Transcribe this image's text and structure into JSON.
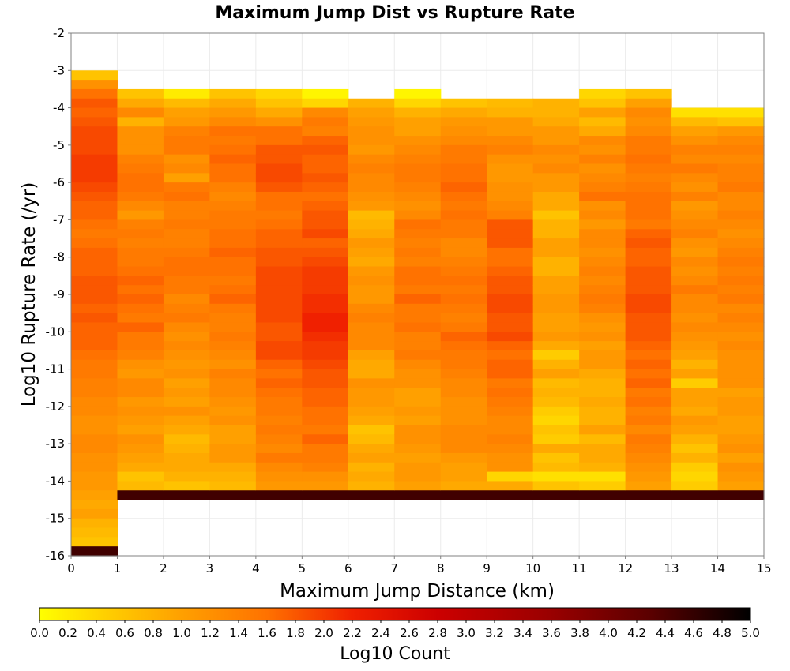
{
  "chart_data": {
    "type": "heatmap",
    "title": "Maximum Jump Dist vs Rupture Rate",
    "xlabel": "Maximum Jump Distance (km)",
    "ylabel": "Log10 Rupture Rate (/yr)",
    "xlim": [
      0,
      15
    ],
    "ylim": [
      -16,
      -2
    ],
    "x_ticks": [
      "0",
      "1",
      "2",
      "3",
      "4",
      "5",
      "6",
      "7",
      "8",
      "9",
      "10",
      "11",
      "12",
      "13",
      "14",
      "15"
    ],
    "y_ticks": [
      "-2",
      "-3",
      "-4",
      "-5",
      "-6",
      "-7",
      "-8",
      "-9",
      "-10",
      "-11",
      "-12",
      "-13",
      "-14",
      "-15",
      "-16"
    ],
    "x_bin_starts": [
      0,
      1,
      2,
      3,
      4,
      5,
      6,
      7,
      8,
      9,
      10,
      11,
      12,
      13,
      14
    ],
    "y_bin_width": 0.25,
    "columns": [
      {
        "x": 0,
        "y_top": -3.0,
        "values": [
          0.6,
          1.2,
          1.6,
          1.8,
          1.7,
          1.8,
          1.9,
          1.9,
          1.9,
          2.0,
          2.0,
          2.0,
          1.9,
          1.8,
          1.7,
          1.7,
          1.6,
          1.5,
          1.6,
          1.7,
          1.7,
          1.7,
          1.8,
          1.8,
          1.8,
          1.7,
          1.8,
          1.7,
          1.7,
          1.7,
          1.6,
          1.5,
          1.5,
          1.4,
          1.4,
          1.3,
          1.3,
          1.2,
          1.2,
          1.3,
          1.3,
          1.2,
          1.2,
          1.1,
          1.1,
          1.0,
          0.9,
          1.0,
          0.8,
          0.7,
          0.6,
          4.5
        ]
      },
      {
        "x": 1,
        "y_top": -3.5,
        "values": [
          0.6,
          0.9,
          1.3,
          0.8,
          1.2,
          1.2,
          1.2,
          1.4,
          1.5,
          1.6,
          1.6,
          1.5,
          1.3,
          1.1,
          1.4,
          1.5,
          1.4,
          1.5,
          1.5,
          1.6,
          1.7,
          1.6,
          1.7,
          1.6,
          1.5,
          1.7,
          1.5,
          1.5,
          1.4,
          1.2,
          1.1,
          1.3,
          1.3,
          1.1,
          1.2,
          1.1,
          1.0,
          1.2,
          1.1,
          1.0,
          0.9,
          0.6,
          0.7,
          4.5
        ]
      },
      {
        "x": 2,
        "y_top": -3.5,
        "values": [
          0.2,
          0.7,
          1.0,
          1.1,
          1.4,
          1.5,
          1.5,
          1.2,
          1.3,
          1.0,
          1.5,
          1.6,
          1.4,
          1.4,
          1.5,
          1.4,
          1.4,
          1.5,
          1.6,
          1.6,
          1.5,
          1.5,
          1.3,
          1.4,
          1.5,
          1.3,
          1.2,
          1.3,
          1.2,
          1.1,
          1.2,
          1.0,
          1.1,
          1.0,
          1.2,
          1.0,
          0.9,
          0.7,
          0.8,
          0.9,
          0.9,
          0.8,
          0.6,
          4.5
        ]
      },
      {
        "x": 3,
        "y_top": -3.5,
        "values": [
          0.6,
          0.9,
          1.1,
          1.3,
          1.6,
          1.5,
          1.6,
          1.7,
          1.6,
          1.6,
          1.4,
          1.3,
          1.4,
          1.5,
          1.5,
          1.6,
          1.6,
          1.7,
          1.6,
          1.6,
          1.5,
          1.6,
          1.7,
          1.5,
          1.4,
          1.4,
          1.5,
          1.4,
          1.3,
          1.2,
          1.4,
          1.3,
          1.3,
          1.2,
          1.1,
          1.2,
          1.0,
          1.0,
          1.1,
          1.1,
          0.9,
          0.8,
          0.7,
          4.5
        ]
      },
      {
        "x": 4,
        "y_top": -3.5,
        "values": [
          0.4,
          0.6,
          0.9,
          1.2,
          1.6,
          1.6,
          1.8,
          1.8,
          1.9,
          1.9,
          1.8,
          1.6,
          1.6,
          1.5,
          1.6,
          1.7,
          1.7,
          1.8,
          1.8,
          1.9,
          1.9,
          1.9,
          1.9,
          1.9,
          1.9,
          1.8,
          1.8,
          1.9,
          1.9,
          1.7,
          1.6,
          1.7,
          1.6,
          1.5,
          1.5,
          1.4,
          1.5,
          1.4,
          1.3,
          1.5,
          1.3,
          1.2,
          1.1,
          4.5
        ]
      },
      {
        "x": 5,
        "y_top": -3.5,
        "values": [
          0.1,
          0.4,
          1.3,
          1.5,
          1.4,
          1.7,
          1.8,
          1.7,
          1.7,
          1.8,
          1.7,
          1.6,
          1.7,
          1.8,
          1.8,
          1.9,
          1.7,
          1.8,
          1.9,
          2.0,
          2.0,
          2.0,
          2.1,
          2.1,
          2.2,
          2.2,
          2.1,
          2.0,
          2.0,
          1.9,
          1.8,
          1.8,
          1.7,
          1.7,
          1.6,
          1.6,
          1.5,
          1.7,
          1.5,
          1.5,
          1.4,
          1.2,
          1.1,
          4.5
        ]
      },
      {
        "x": 6,
        "y_top": -3.75,
        "values": [
          0.8,
          1.0,
          1.1,
          1.2,
          1.2,
          1.1,
          1.3,
          1.4,
          1.3,
          1.3,
          1.2,
          1.1,
          0.7,
          0.8,
          0.9,
          1.1,
          1.0,
          0.9,
          1.1,
          1.2,
          1.1,
          1.1,
          1.3,
          1.4,
          1.3,
          1.3,
          1.3,
          1.0,
          0.9,
          0.9,
          1.2,
          1.1,
          1.1,
          1.0,
          0.9,
          0.6,
          0.7,
          0.9,
          1.0,
          0.8,
          0.9,
          0.8,
          4.5
        ]
      },
      {
        "x": 7,
        "y_top": -3.5,
        "values": [
          0.1,
          0.4,
          0.8,
          1.0,
          1.0,
          1.2,
          1.3,
          1.4,
          1.5,
          1.5,
          1.4,
          1.3,
          1.2,
          1.3,
          1.6,
          1.5,
          1.4,
          1.5,
          1.4,
          1.6,
          1.6,
          1.5,
          1.7,
          1.5,
          1.5,
          1.6,
          1.4,
          1.4,
          1.5,
          1.3,
          1.2,
          1.2,
          1.0,
          1.0,
          1.1,
          1.0,
          1.2,
          1.2,
          1.1,
          1.0,
          1.1,
          1.1,
          1.0,
          4.5
        ]
      },
      {
        "x": 8,
        "y_top": -3.75,
        "values": [
          0.6,
          0.9,
          1.1,
          1.2,
          1.3,
          1.5,
          1.5,
          1.6,
          1.6,
          1.7,
          1.6,
          1.5,
          1.6,
          1.5,
          1.5,
          1.3,
          1.3,
          1.4,
          1.5,
          1.6,
          1.5,
          1.6,
          1.5,
          1.4,
          1.5,
          1.7,
          1.6,
          1.5,
          1.5,
          1.4,
          1.3,
          1.3,
          1.2,
          1.2,
          1.2,
          1.3,
          1.3,
          1.3,
          1.1,
          1.0,
          1.0,
          0.9,
          4.5
        ]
      },
      {
        "x": 9,
        "y_top": -3.75,
        "values": [
          0.7,
          0.8,
          1.1,
          1.1,
          1.3,
          1.4,
          1.2,
          1.1,
          1.1,
          1.2,
          1.2,
          1.3,
          1.4,
          1.8,
          1.8,
          1.8,
          1.6,
          1.6,
          1.7,
          1.8,
          1.8,
          1.9,
          1.9,
          1.8,
          1.8,
          1.9,
          1.7,
          1.6,
          1.7,
          1.7,
          1.5,
          1.6,
          1.5,
          1.4,
          1.3,
          1.3,
          1.4,
          1.3,
          1.2,
          1.2,
          0.4,
          0.9,
          4.5
        ]
      },
      {
        "x": 10,
        "y_top": -3.75,
        "values": [
          0.8,
          0.8,
          0.9,
          1.1,
          1.1,
          1.3,
          1.2,
          1.3,
          1.1,
          1.1,
          0.9,
          0.9,
          0.6,
          0.8,
          0.8,
          1.0,
          1.0,
          0.8,
          0.8,
          1.0,
          1.0,
          1.1,
          1.1,
          1.0,
          1.0,
          1.1,
          0.9,
          0.5,
          0.8,
          1.0,
          0.7,
          0.8,
          0.7,
          0.5,
          0.4,
          0.6,
          0.5,
          0.9,
          0.6,
          0.7,
          0.3,
          0.6,
          4.5
        ]
      },
      {
        "x": 11,
        "y_top": -3.5,
        "values": [
          0.4,
          0.6,
          1.0,
          0.7,
          0.9,
          1.3,
          1.2,
          1.4,
          1.2,
          1.3,
          1.4,
          1.6,
          1.2,
          1.3,
          1.1,
          1.3,
          1.3,
          1.2,
          1.3,
          1.4,
          1.3,
          1.4,
          1.5,
          1.4,
          1.2,
          1.1,
          1.2,
          1.0,
          1.1,
          1.1,
          0.9,
          0.8,
          0.8,
          0.9,
          0.8,
          0.8,
          1.0,
          0.7,
          0.9,
          0.9,
          0.8,
          0.3,
          0.5,
          4.5
        ]
      },
      {
        "x": 12,
        "y_top": -3.5,
        "values": [
          0.6,
          1.0,
          1.3,
          1.2,
          1.3,
          1.5,
          1.5,
          1.6,
          1.5,
          1.4,
          1.5,
          1.6,
          1.6,
          1.6,
          1.5,
          1.7,
          1.8,
          1.7,
          1.7,
          1.8,
          1.8,
          1.8,
          1.9,
          1.9,
          1.8,
          1.8,
          1.8,
          1.7,
          1.6,
          1.7,
          1.6,
          1.7,
          1.5,
          1.6,
          1.4,
          1.5,
          1.3,
          1.5,
          1.4,
          1.3,
          1.2,
          1.1,
          1.0,
          4.5
        ]
      },
      {
        "x": 13,
        "y_top": -4.0,
        "values": [
          0.3,
          0.7,
          1.0,
          1.2,
          1.4,
          1.3,
          1.5,
          1.3,
          1.2,
          1.4,
          1.1,
          1.2,
          1.3,
          1.4,
          1.2,
          1.1,
          1.3,
          1.2,
          1.3,
          1.5,
          1.3,
          1.3,
          1.2,
          1.3,
          1.2,
          1.1,
          1.0,
          0.8,
          1.0,
          0.5,
          1.0,
          1.0,
          0.9,
          1.1,
          1.0,
          0.8,
          0.6,
          0.8,
          0.5,
          0.4,
          0.5,
          4.5
        ]
      },
      {
        "x": 14,
        "y_top": -4.0,
        "values": [
          0.3,
          0.6,
          1.1,
          1.3,
          1.4,
          1.3,
          1.4,
          1.4,
          1.5,
          1.3,
          1.3,
          1.4,
          1.3,
          1.2,
          1.3,
          1.4,
          1.5,
          1.4,
          1.5,
          1.4,
          1.5,
          1.3,
          1.4,
          1.3,
          1.2,
          1.3,
          1.2,
          1.2,
          1.2,
          1.2,
          1.0,
          1.1,
          1.1,
          1.0,
          1.0,
          1.1,
          1.2,
          1.0,
          1.2,
          1.1,
          1.0,
          4.5
        ]
      }
    ],
    "colorbar": {
      "label": "Log10 Count",
      "min": 0.0,
      "max": 5.0,
      "ticks": [
        "0.0",
        "0.2",
        "0.4",
        "0.6",
        "0.8",
        "1.0",
        "1.2",
        "1.4",
        "1.6",
        "1.8",
        "2.0",
        "2.2",
        "2.4",
        "2.6",
        "2.8",
        "3.0",
        "3.2",
        "3.4",
        "3.6",
        "3.8",
        "4.0",
        "4.2",
        "4.4",
        "4.6",
        "4.8",
        "5.0"
      ],
      "color_stops": [
        {
          "v": 0.0,
          "c": "#ffff00"
        },
        {
          "v": 0.5,
          "c": "#ffcc00"
        },
        {
          "v": 1.0,
          "c": "#ffa000"
        },
        {
          "v": 1.6,
          "c": "#ff7200"
        },
        {
          "v": 2.2,
          "c": "#f02000"
        },
        {
          "v": 2.8,
          "c": "#cc0000"
        },
        {
          "v": 3.6,
          "c": "#990000"
        },
        {
          "v": 4.3,
          "c": "#5a0000"
        },
        {
          "v": 5.0,
          "c": "#000000"
        }
      ]
    }
  }
}
